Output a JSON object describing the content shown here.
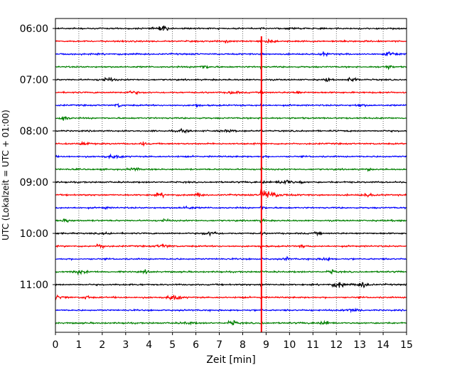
{
  "chart_data": {
    "type": "line",
    "xlabel": "Zeit  [min]",
    "ylabel": "UTC (Lokalzeit = UTC + 01:00)",
    "xlim": [
      0,
      15
    ],
    "x_ticks": [
      0,
      1,
      2,
      3,
      4,
      5,
      6,
      7,
      8,
      9,
      10,
      11,
      12,
      13,
      14,
      15
    ],
    "grid": "vertical dotted",
    "y_tick_labels": [
      "06:00",
      "07:00",
      "08:00",
      "09:00",
      "10:00",
      "11:00"
    ],
    "trace_interval_minutes": 15,
    "trace_count": 24,
    "first_trace_time": "06:00",
    "trace_color_cycle": [
      "#000000",
      "#ff0000",
      "#0000ff",
      "#008000"
    ],
    "event": {
      "onset_minute": 8.8,
      "max_amplitude_trace_time": "09:15",
      "color": "#ff0000"
    }
  }
}
